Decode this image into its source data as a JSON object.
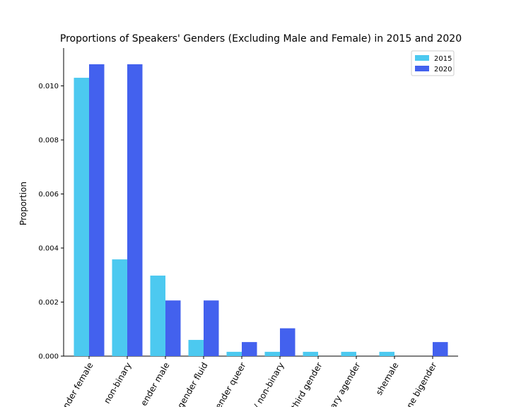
{
  "chart_data": {
    "type": "bar",
    "title": "Proportions of Speakers' Genders (Excluding Male and Female) in 2015 and 2020",
    "y_label": "Proportion",
    "categories": [
      "ender female",
      "non-binary",
      "ender male",
      "gender fluid",
      "ender queer",
      "/ non-binary",
      "third gender",
      "ary agender",
      "shemale",
      "ne bigender"
    ],
    "series": [
      {
        "name": "2015",
        "color": "#4cc9f0",
        "values": [
          0.0103,
          0.00358,
          0.00298,
          0.0006,
          0.00016,
          0.00016,
          0.00016,
          0.00016,
          0.00016,
          0
        ]
      },
      {
        "name": "2020",
        "color": "#4361ee",
        "values": [
          0.0108,
          0.0108,
          0.00206,
          0.00206,
          0.00052,
          0.00103,
          0,
          0,
          0,
          0.00052
        ]
      }
    ],
    "ylim": [
      0,
      0.0114
    ],
    "yticks": [
      {
        "value": 0,
        "label": "0.000"
      },
      {
        "value": 0.002,
        "label": "0.002"
      },
      {
        "value": 0.004,
        "label": "0.004"
      },
      {
        "value": 0.006,
        "label": "0.006"
      },
      {
        "value": 0.008,
        "label": "0.008"
      },
      {
        "value": 0.01,
        "label": "0.010"
      }
    ],
    "legend": "upper right"
  }
}
